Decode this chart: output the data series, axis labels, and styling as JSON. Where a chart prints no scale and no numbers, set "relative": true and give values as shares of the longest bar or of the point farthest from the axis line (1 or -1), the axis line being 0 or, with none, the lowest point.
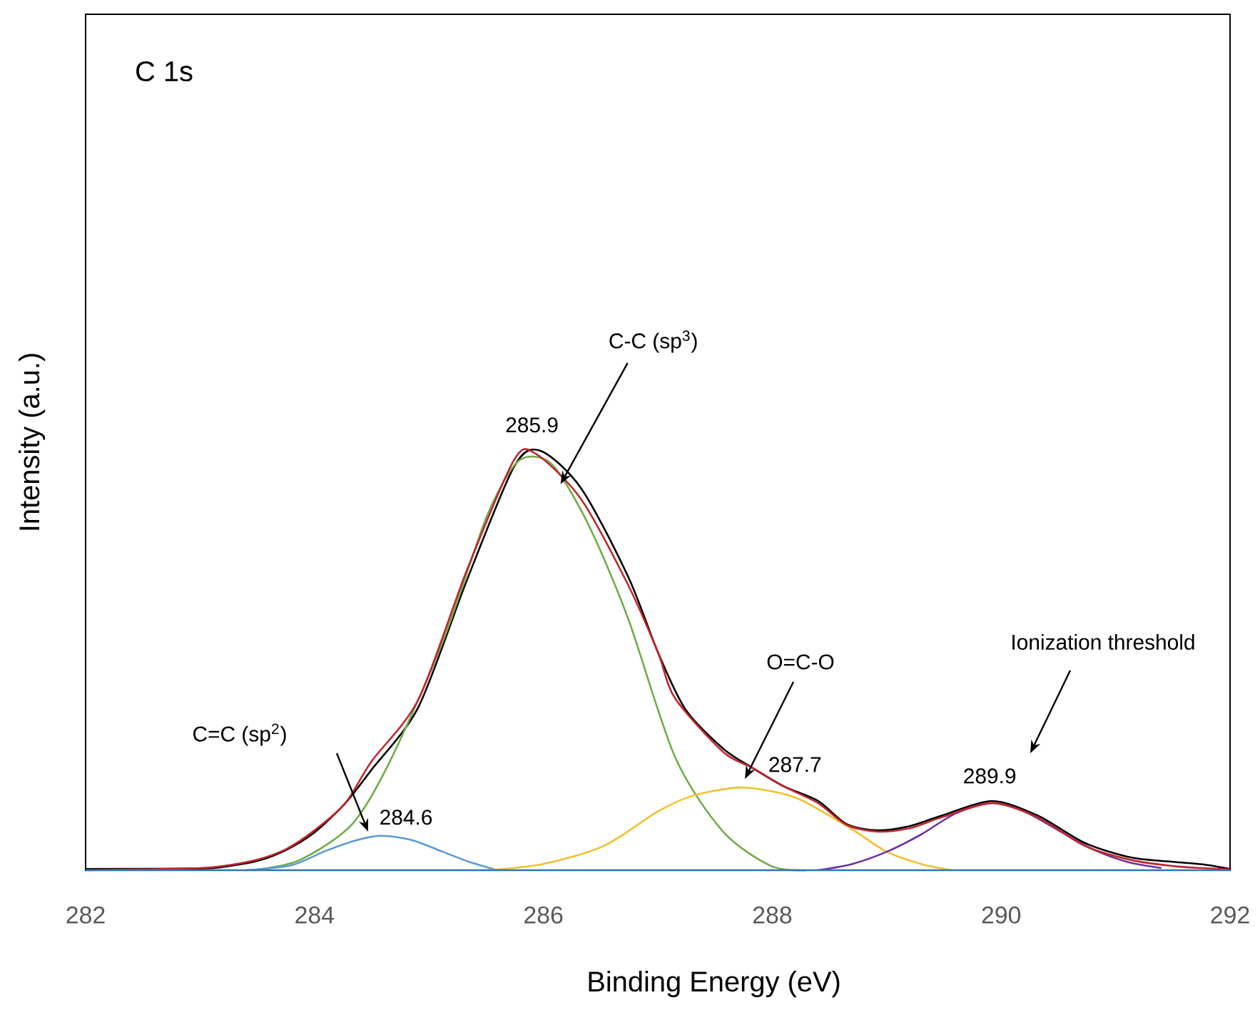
{
  "chart_data": {
    "type": "line",
    "xlabel": "Binding Energy (eV)",
    "ylabel": "Intensity (a.u.)",
    "relative": true,
    "xlim": [
      282,
      292
    ],
    "xticks": [
      282,
      284,
      286,
      288,
      290,
      292
    ],
    "series": [
      {
        "color": "#000000",
        "x": [
          282,
          282.5,
          283,
          283.25,
          283.5,
          283.75,
          284,
          284.27,
          284.5,
          284.91,
          285.33,
          285.74,
          285.97,
          286.33,
          286.74,
          287.0,
          287.24,
          287.57,
          287.82,
          288.1,
          288.4,
          288.65,
          288.92,
          289.2,
          289.48,
          289.92,
          290.32,
          290.73,
          291.14,
          291.5,
          291.76,
          292
        ],
        "values": [
          0.003,
          null,
          0.004,
          0.01,
          0.022,
          0.048,
          0.09,
          0.16,
          0.24,
          0.39,
          0.69,
          0.96,
          1.0,
          0.91,
          0.7,
          0.52,
          0.384,
          0.29,
          0.245,
          0.2,
          0.165,
          0.11,
          0.095,
          0.105,
          0.13,
          0.165,
          0.13,
          0.065,
          0.03,
          0.02,
          0.014,
          0.003
        ]
      },
      {
        "color": "#70ad47",
        "x": [
          283.46,
          283.87,
          284.33,
          284.66,
          285.12,
          285.5,
          285.74,
          285.9,
          286.1,
          286.4,
          286.74,
          287.15,
          287.57,
          287.99,
          288.3
        ],
        "values": [
          0,
          0.024,
          0.11,
          0.26,
          0.544,
          0.84,
          0.963,
          0.986,
          0.96,
          0.82,
          0.6,
          0.27,
          0.092,
          0.01,
          0
        ]
      },
      {
        "color": "#5b9bd5",
        "x": [
          283.4,
          283.8,
          284.08,
          284.35,
          284.58,
          284.85,
          285.12,
          285.35,
          285.6
        ],
        "values": [
          0,
          0.012,
          0.044,
          0.07,
          0.082,
          0.072,
          0.044,
          0.02,
          0
        ]
      },
      {
        "color": "#f2c12e",
        "x": [
          285.5,
          286.0,
          286.53,
          287.0,
          287.3,
          287.7,
          288.0,
          288.23,
          288.5,
          288.73,
          289.0,
          289.3,
          289.57
        ],
        "values": [
          0,
          0.015,
          0.058,
          0.14,
          0.177,
          0.197,
          0.188,
          0.17,
          0.13,
          0.092,
          0.044,
          0.015,
          0
        ]
      },
      {
        "color": "#7030a0",
        "x": [
          288.4,
          288.7,
          289.0,
          289.3,
          289.6,
          289.92,
          290.2,
          290.5,
          290.8,
          291.1,
          291.4
        ],
        "values": [
          0,
          0.015,
          0.044,
          0.085,
          0.135,
          0.16,
          0.14,
          0.095,
          0.05,
          0.02,
          0.005
        ]
      },
      {
        "color": "#c0272d",
        "x": [
          282,
          282.5,
          283,
          283.25,
          283.5,
          283.75,
          284,
          284.27,
          284.5,
          284.91,
          285.33,
          285.74,
          285.93,
          286.33,
          286.74,
          287.0,
          287.15,
          287.57,
          287.82,
          288.1,
          288.4,
          288.65,
          288.92,
          289.2,
          289.48,
          289.92,
          290.32,
          290.73,
          291.14,
          291.5,
          291.76,
          292
        ],
        "values": [
          0,
          0.002,
          0.005,
          0.012,
          0.025,
          0.05,
          0.095,
          0.16,
          0.26,
          0.408,
          0.714,
          0.976,
          0.993,
          0.884,
          0.68,
          0.52,
          0.41,
          0.282,
          0.245,
          0.2,
          0.16,
          0.108,
          0.092,
          0.1,
          0.126,
          0.16,
          0.126,
          0.058,
          0.024,
          0.01,
          0.005,
          0.002
        ]
      },
      {
        "color": "#2e75b6",
        "x": [
          282,
          292
        ],
        "values": [
          0,
          0
        ]
      }
    ],
    "annotations": [
      "C 1s",
      {
        "text": "C-C (sp$^{3}$)",
        "x": 286.15,
        "y": 0.92
      },
      {
        "text": "285.9",
        "x": 285.9,
        "y": 1.0
      },
      "C=C (sp$^{2}$)",
      {
        "text": "284.6",
        "x": 284.6,
        "y": 0.082
      },
      "O=C-O",
      {
        "text": "287.7",
        "x": 287.7,
        "y": 0.245
      },
      "Ionization threshold",
      {
        "text": "289.9",
        "x": 289.9,
        "y": 0.16
      }
    ]
  }
}
